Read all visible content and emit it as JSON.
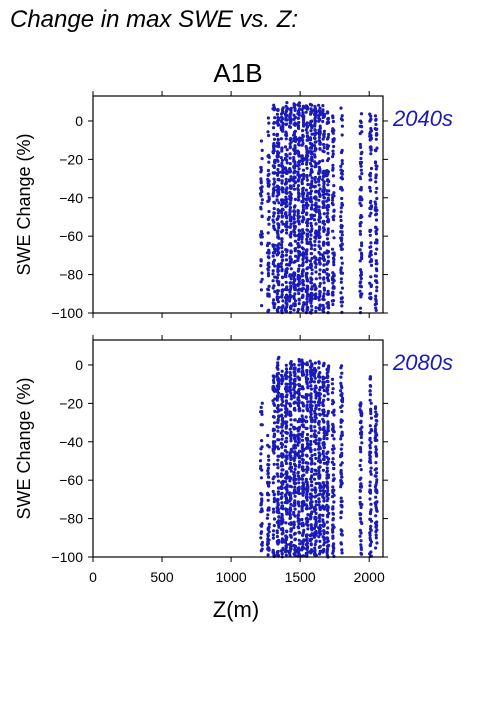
{
  "figure_title": "Change in max SWE vs. Z:",
  "chart_data": [
    {
      "type": "scatter",
      "title": "A1B",
      "panel_label": "2040s",
      "ylabel": "SWE Change (%)",
      "xlabel": "",
      "xlim": [
        0,
        2100
      ],
      "ylim": [
        -100,
        13
      ],
      "xticks": [
        "0",
        "500",
        "1000",
        "1500",
        "2000"
      ],
      "yticks": [
        "0",
        "−20",
        "−40",
        "−60",
        "−80",
        "−100"
      ],
      "series": [
        {
          "color": "#1a1ab8",
          "columns": [
            {
              "x": 1220,
              "ymin": -98,
              "ymax": -8,
              "density": 0.35
            },
            {
              "x": 1270,
              "ymin": -100,
              "ymax": 2,
              "density": 0.5
            },
            {
              "x": 1310,
              "ymin": -100,
              "ymax": 9,
              "density": 0.7
            },
            {
              "x": 1340,
              "ymin": -100,
              "ymax": 10,
              "density": 1.0
            },
            {
              "x": 1370,
              "ymin": -100,
              "ymax": 8,
              "density": 0.9
            },
            {
              "x": 1400,
              "ymin": -100,
              "ymax": 10,
              "density": 1.0
            },
            {
              "x": 1430,
              "ymin": -100,
              "ymax": 10,
              "density": 1.0
            },
            {
              "x": 1460,
              "ymin": -100,
              "ymax": 9,
              "density": 1.0
            },
            {
              "x": 1490,
              "ymin": -100,
              "ymax": 10,
              "density": 1.0
            },
            {
              "x": 1520,
              "ymin": -100,
              "ymax": 10,
              "density": 1.0
            },
            {
              "x": 1550,
              "ymin": -100,
              "ymax": 9,
              "density": 1.0
            },
            {
              "x": 1580,
              "ymin": -100,
              "ymax": 10,
              "density": 1.0
            },
            {
              "x": 1610,
              "ymin": -100,
              "ymax": 8,
              "density": 0.9
            },
            {
              "x": 1640,
              "ymin": -100,
              "ymax": 9,
              "density": 0.9
            },
            {
              "x": 1670,
              "ymin": -100,
              "ymax": 8,
              "density": 0.8
            },
            {
              "x": 1700,
              "ymin": -100,
              "ymax": 7,
              "density": 0.8
            },
            {
              "x": 1740,
              "ymin": -100,
              "ymax": 5,
              "density": 0.6
            },
            {
              "x": 1800,
              "ymin": -100,
              "ymax": 7,
              "density": 0.6
            },
            {
              "x": 1940,
              "ymin": -100,
              "ymax": 4,
              "density": 0.6
            },
            {
              "x": 2010,
              "ymin": -98,
              "ymax": 4,
              "density": 0.6
            },
            {
              "x": 2050,
              "ymin": -100,
              "ymax": 3,
              "density": 0.6
            }
          ]
        }
      ]
    },
    {
      "type": "scatter",
      "title": "",
      "panel_label": "2080s",
      "ylabel": "SWE Change (%)",
      "xlabel": "Z(m)",
      "xlim": [
        0,
        2100
      ],
      "ylim": [
        -100,
        13
      ],
      "xticks": [
        "0",
        "500",
        "1000",
        "1500",
        "2000"
      ],
      "yticks": [
        "0",
        "−20",
        "−40",
        "−60",
        "−80",
        "−100"
      ],
      "series": [
        {
          "color": "#1a1ab8",
          "columns": [
            {
              "x": 1220,
              "ymin": -100,
              "ymax": -18,
              "density": 0.35
            },
            {
              "x": 1270,
              "ymin": -100,
              "ymax": -35,
              "density": 0.45
            },
            {
              "x": 1310,
              "ymin": -100,
              "ymax": -5,
              "density": 0.6
            },
            {
              "x": 1340,
              "ymin": -100,
              "ymax": 4,
              "density": 0.9
            },
            {
              "x": 1370,
              "ymin": -100,
              "ymax": -3,
              "density": 0.9
            },
            {
              "x": 1400,
              "ymin": -100,
              "ymax": 0,
              "density": 1.0
            },
            {
              "x": 1430,
              "ymin": -100,
              "ymax": 3,
              "density": 1.0
            },
            {
              "x": 1460,
              "ymin": -100,
              "ymax": 2,
              "density": 1.0
            },
            {
              "x": 1490,
              "ymin": -100,
              "ymax": 4,
              "density": 1.0
            },
            {
              "x": 1520,
              "ymin": -100,
              "ymax": 3,
              "density": 1.0
            },
            {
              "x": 1550,
              "ymin": -100,
              "ymax": 2,
              "density": 1.0
            },
            {
              "x": 1580,
              "ymin": -100,
              "ymax": 3,
              "density": 1.0
            },
            {
              "x": 1610,
              "ymin": -100,
              "ymax": 2,
              "density": 0.9
            },
            {
              "x": 1640,
              "ymin": -100,
              "ymax": 3,
              "density": 0.9
            },
            {
              "x": 1670,
              "ymin": -100,
              "ymax": 2,
              "density": 0.8
            },
            {
              "x": 1700,
              "ymin": -100,
              "ymax": 4,
              "density": 0.8
            },
            {
              "x": 1740,
              "ymin": -100,
              "ymax": -5,
              "density": 0.6
            },
            {
              "x": 1800,
              "ymin": -100,
              "ymax": 0,
              "density": 0.6
            },
            {
              "x": 1940,
              "ymin": -100,
              "ymax": -18,
              "density": 0.55
            },
            {
              "x": 2010,
              "ymin": -100,
              "ymax": -5,
              "density": 0.6
            },
            {
              "x": 2050,
              "ymin": -100,
              "ymax": -20,
              "density": 0.6
            }
          ]
        }
      ]
    }
  ]
}
